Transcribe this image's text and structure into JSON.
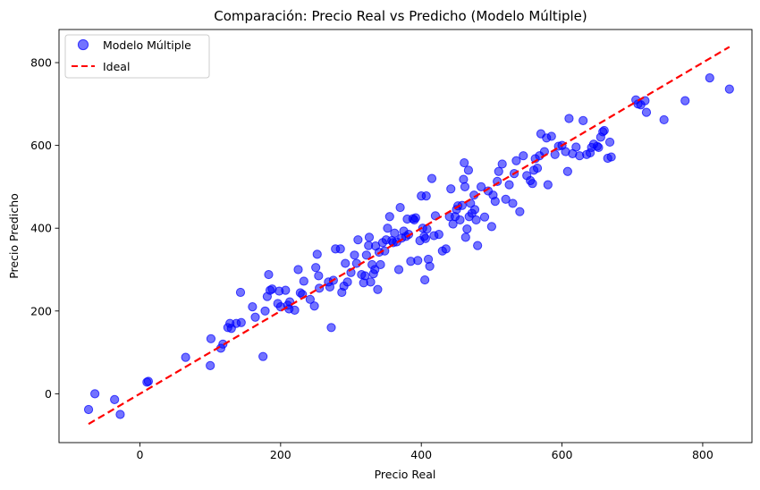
{
  "chart_data": {
    "type": "scatter",
    "title": "Comparación: Precio Real vs Predicho (Modelo Múltiple)",
    "xlabel": "Precio Real",
    "ylabel": "Precio Predicho",
    "xlim": [
      -115,
      870
    ],
    "ylim": [
      -118,
      880
    ],
    "xticks": [
      0,
      200,
      400,
      600,
      800
    ],
    "yticks": [
      0,
      200,
      400,
      600,
      800
    ],
    "legend": {
      "placement": "top-left",
      "entries": [
        "Modelo Múltiple",
        "Ideal"
      ]
    },
    "colors": {
      "points": "#0000ff",
      "ideal": "#ff0000"
    },
    "series": [
      {
        "name": "Modelo Múltiple",
        "kind": "scatter",
        "x": [
          -73,
          -64,
          -36,
          -28,
          10,
          12,
          65,
          100,
          101,
          115,
          118,
          125,
          128,
          130,
          137,
          143,
          144,
          160,
          164,
          175,
          178,
          181,
          183,
          185,
          188,
          196,
          198,
          200,
          207,
          210,
          212,
          213,
          220,
          225,
          228,
          231,
          233,
          242,
          248,
          250,
          252,
          254,
          255,
          268,
          270,
          272,
          275,
          278,
          285,
          287,
          290,
          292,
          295,
          300,
          305,
          308,
          310,
          315,
          318,
          320,
          322,
          325,
          326,
          328,
          330,
          332,
          334,
          335,
          338,
          340,
          342,
          345,
          348,
          350,
          352,
          355,
          358,
          360,
          362,
          365,
          368,
          370,
          372,
          375,
          378,
          380,
          382,
          385,
          388,
          390,
          392,
          395,
          398,
          400,
          402,
          404,
          405,
          406,
          407,
          408,
          410,
          412,
          415,
          418,
          420,
          425,
          430,
          435,
          440,
          442,
          445,
          448,
          450,
          452,
          455,
          458,
          460,
          461,
          462,
          463,
          465,
          467,
          468,
          470,
          472,
          475,
          476,
          478,
          480,
          485,
          490,
          495,
          500,
          502,
          505,
          508,
          510,
          515,
          520,
          525,
          530,
          532,
          535,
          540,
          545,
          550,
          555,
          558,
          560,
          562,
          565,
          568,
          570,
          575,
          578,
          580,
          585,
          590,
          595,
          600,
          605,
          608,
          610,
          615,
          620,
          625,
          630,
          635,
          640,
          642,
          645,
          650,
          652,
          655,
          658,
          660,
          665,
          668,
          670,
          705,
          708,
          712,
          718,
          720,
          745,
          775,
          810,
          838
        ],
        "y": [
          -38,
          0,
          -14,
          -50,
          28,
          30,
          88,
          68,
          133,
          110,
          120,
          160,
          170,
          158,
          170,
          245,
          172,
          210,
          185,
          90,
          200,
          235,
          288,
          250,
          253,
          218,
          248,
          210,
          250,
          214,
          205,
          222,
          202,
          300,
          244,
          240,
          272,
          228,
          212,
          305,
          337,
          285,
          255,
          270,
          258,
          160,
          274,
          350,
          350,
          245,
          260,
          315,
          270,
          293,
          335,
          315,
          372,
          288,
          268,
          285,
          335,
          358,
          378,
          270,
          312,
          290,
          300,
          357,
          252,
          342,
          312,
          365,
          345,
          372,
          400,
          428,
          370,
          365,
          388,
          367,
          300,
          450,
          376,
          393,
          380,
          422,
          385,
          320,
          423,
          420,
          425,
          322,
          370,
          478,
          400,
          380,
          275,
          375,
          478,
          398,
          325,
          308,
          520,
          382,
          430,
          385,
          345,
          350,
          428,
          495,
          410,
          428,
          445,
          454,
          420,
          455,
          518,
          558,
          500,
          378,
          398,
          540,
          428,
          460,
          436,
          480,
          445,
          420,
          358,
          500,
          427,
          490,
          404,
          480,
          465,
          513,
          537,
          555,
          470,
          505,
          460,
          532,
          563,
          440,
          575,
          527,
          515,
          508,
          540,
          568,
          545,
          575,
          628,
          585,
          618,
          505,
          622,
          578,
          598,
          600,
          585,
          537,
          665,
          580,
          596,
          575,
          660,
          578,
          582,
          595,
          603,
          598,
          595,
          620,
          633,
          636,
          569,
          608,
          572,
          710,
          700,
          698,
          708,
          680,
          662,
          708,
          763,
          736
        ]
      },
      {
        "name": "Ideal",
        "kind": "line",
        "x": [
          -73,
          838
        ],
        "y": [
          -73,
          838
        ]
      }
    ]
  }
}
